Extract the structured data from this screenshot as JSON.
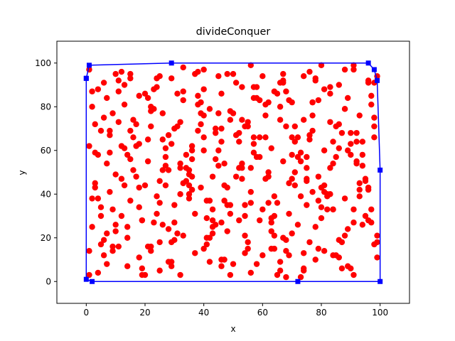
{
  "chart_data": {
    "type": "scatter",
    "title": "divideConquer",
    "xlabel": "x",
    "ylabel": "y",
    "xlim": [
      -10,
      110
    ],
    "ylim": [
      -10,
      110
    ],
    "x_ticks": [
      0,
      20,
      40,
      60,
      80,
      100
    ],
    "y_ticks": [
      0,
      20,
      40,
      60,
      80,
      100
    ],
    "grid": false,
    "colors": {
      "points": "#ff0000",
      "hull": "#0000ff"
    },
    "series": [
      {
        "role": "points",
        "marker": "circle",
        "color": "#ff0000",
        "x": [
          1,
          3,
          4,
          6,
          8,
          10,
          13,
          15,
          18,
          22,
          25,
          27,
          30,
          33,
          36,
          40,
          43,
          46,
          50,
          53,
          56,
          60,
          63,
          66,
          70,
          73,
          76,
          80,
          83,
          86,
          90,
          93,
          96,
          99,
          2,
          5,
          7,
          9,
          12,
          14,
          17,
          20,
          23,
          26,
          29,
          32,
          35,
          38,
          41,
          44,
          47,
          51,
          54,
          57,
          61,
          64,
          67,
          71,
          74,
          77,
          81,
          84,
          87,
          91,
          94,
          97,
          1,
          4,
          6,
          9,
          11,
          16,
          19,
          21,
          24,
          28,
          31,
          34,
          37,
          39,
          42,
          45,
          48,
          52,
          55,
          58,
          62,
          65,
          68,
          72,
          75,
          78,
          82,
          85,
          88,
          92,
          95,
          98,
          2,
          3,
          7,
          10,
          13,
          15,
          18,
          22,
          25,
          27,
          30,
          33,
          36,
          40,
          43,
          46,
          49,
          53,
          56,
          59,
          63,
          66,
          69,
          73,
          76,
          79,
          83,
          86,
          89,
          93,
          96,
          99,
          1,
          5,
          8,
          11,
          14,
          17,
          20,
          23,
          26,
          29,
          32,
          35,
          38,
          41,
          44,
          47,
          50,
          54,
          57,
          60,
          64,
          67,
          70,
          74,
          77,
          80,
          84,
          87,
          90,
          94,
          97,
          3,
          6,
          9,
          12,
          16,
          19,
          21,
          24,
          28,
          31,
          34,
          37,
          39,
          42,
          45,
          48,
          52,
          55,
          58,
          62,
          65,
          68,
          71,
          75,
          78,
          81,
          85,
          88,
          91,
          95,
          98,
          2,
          4,
          7,
          10,
          13,
          15,
          18,
          22,
          25,
          27,
          30,
          33,
          36,
          40,
          43,
          46,
          49,
          53,
          56,
          59,
          63,
          66,
          69,
          72,
          76,
          79,
          82,
          86,
          89,
          92,
          96,
          99,
          1,
          5,
          8,
          11,
          14,
          17,
          20,
          23,
          26,
          29,
          32,
          35,
          38,
          41,
          44,
          47,
          51,
          54,
          57,
          61,
          64,
          67,
          70,
          74,
          77,
          80,
          83,
          87,
          90,
          93,
          97,
          3,
          6,
          9,
          12,
          16,
          19,
          21,
          24,
          28,
          31,
          34,
          37,
          39,
          42,
          45,
          48,
          52,
          55,
          58,
          62,
          65,
          68,
          71,
          75,
          78,
          81,
          84,
          88,
          91,
          94,
          98,
          2,
          4,
          7,
          10,
          13,
          15,
          18,
          22,
          25,
          27,
          30,
          33,
          36,
          40,
          43,
          46,
          49,
          53,
          56,
          59,
          63,
          66,
          69,
          73,
          76,
          79,
          83,
          86,
          89,
          93,
          96,
          5,
          12,
          19,
          26,
          33,
          40,
          47,
          54,
          61,
          68,
          75,
          82,
          89,
          96,
          8,
          15,
          22,
          29,
          36,
          43,
          50,
          57,
          64,
          71,
          78,
          85,
          92,
          99,
          11,
          18,
          25,
          32,
          39,
          46,
          53,
          60,
          67,
          74,
          81,
          88,
          95,
          14,
          21,
          28,
          35,
          42,
          49,
          56,
          63,
          70,
          77,
          84,
          91,
          98,
          40,
          45,
          52,
          58,
          62,
          69,
          74,
          80,
          88,
          94,
          35,
          49,
          57,
          66,
          72,
          79,
          86,
          91,
          44,
          55,
          64,
          70,
          77,
          83,
          97,
          24,
          29,
          38,
          46,
          51,
          59,
          67,
          73,
          81,
          90,
          98,
          32,
          41,
          48,
          54,
          61,
          68,
          75,
          84,
          92
        ],
        "y": [
          3,
          45,
          88,
          12,
          67,
          23,
          90,
          56,
          34,
          78,
          5,
          61,
          19,
          83,
          42,
          97,
          28,
          70,
          8,
          52,
          36,
          94,
          15,
          74,
          47,
          2,
          65,
          29,
          86,
          11,
          58,
          39,
          92,
          21,
          80,
          17,
          54,
          33,
          96,
          7,
          72,
          44,
          88,
          26,
          63,
          3,
          49,
          85,
          20,
          68,
          37,
          91,
          13,
          59,
          76,
          30,
          95,
          50,
          6,
          82,
          41,
          64,
          18,
          99,
          53,
          27,
          62,
          38,
          75,
          14,
          92,
          51,
          6,
          84,
          31,
          67,
          22,
          58,
          95,
          43,
          9,
          77,
          35,
          64,
          18,
          89,
          48,
          3,
          71,
          26,
          57,
          93,
          40,
          12,
          79,
          55,
          30,
          66,
          25,
          72,
          8,
          49,
          81,
          37,
          63,
          16,
          94,
          44,
          70,
          21,
          56,
          88,
          33,
          10,
          74,
          47,
          99,
          28,
          61,
          5,
          83,
          39,
          67,
          15,
          52,
          90,
          24,
          76,
          42,
          11,
          97,
          34,
          59,
          73,
          20,
          48,
          86,
          27,
          65,
          9,
          52,
          38,
          81,
          17,
          70,
          44,
          95,
          30,
          63,
          12,
          87,
          55,
          22,
          74,
          41,
          99,
          33,
          68,
          6,
          58,
          85,
          43,
          19,
          77,
          30,
          66,
          3,
          55,
          89,
          24,
          71,
          46,
          13,
          82,
          37,
          60,
          95,
          28,
          73,
          8,
          50,
          86,
          19,
          64,
          35,
          92,
          14,
          57,
          79,
          27,
          46,
          71,
          87,
          58,
          22,
          95,
          44,
          69,
          11,
          80,
          36,
          53,
          27,
          98,
          62,
          15,
          48,
          86,
          31,
          74,
          4,
          57,
          23,
          91,
          45,
          66,
          18,
          83,
          39,
          72,
          7,
          54,
          28,
          94,
          14,
          69,
          41,
          87,
          25,
          62,
          3,
          79,
          51,
          18,
          73,
          40,
          96,
          29,
          56,
          10,
          67,
          35,
          84,
          47,
          21,
          92,
          58,
          13,
          76,
          34,
          89,
          6,
          63,
          42,
          81,
          59,
          91,
          16,
          47,
          74,
          28,
          65,
          39,
          9,
          86,
          52,
          31,
          77,
          20,
          94,
          43,
          68,
          15,
          57,
          82,
          36,
          2,
          71,
          46,
          25,
          88,
          54,
          97,
          33,
          64,
          17,
          38,
          4,
          84,
          26,
          61,
          93,
          43,
          71,
          18,
          57,
          35,
          87,
          48,
          76,
          22,
          64,
          3,
          89,
          41,
          66,
          29,
          80,
          12,
          55,
          96,
          37,
          73,
          19,
          60,
          45,
          91,
          30,
          62,
          28,
          77,
          45,
          60,
          54,
          21,
          66,
          87,
          52,
          33,
          84,
          43,
          69,
          95,
          14,
          93,
          60,
          25,
          77,
          66,
          39,
          44,
          10,
          71,
          68,
          18,
          16,
          85,
          46,
          40,
          72,
          7,
          54,
          33,
          91,
          5,
          60,
          38,
          47,
          58,
          16,
          51,
          44,
          79,
          35,
          52,
          27,
          82,
          69,
          12,
          3,
          75,
          66,
          53,
          52,
          84,
          36,
          31,
          94,
          43,
          21,
          26,
          51,
          78,
          89,
          9,
          57,
          48,
          61,
          97,
          26,
          71,
          15,
          66,
          82,
          40,
          33,
          93,
          7,
          69,
          27,
          48,
          83,
          20,
          59,
          44,
          68,
          91,
          54,
          37,
          23,
          71,
          81,
          14,
          47,
          33,
          64
        ],
        "size": 7
      },
      {
        "role": "hull",
        "marker": "square",
        "color": "#0000ff",
        "closed": true,
        "x": [
          0,
          1,
          29,
          96,
          98,
          99,
          100,
          100,
          72,
          2,
          0,
          0
        ],
        "y": [
          93,
          99,
          100,
          100,
          97,
          92,
          51,
          0,
          0,
          0,
          1,
          93
        ],
        "size": 7
      }
    ]
  }
}
